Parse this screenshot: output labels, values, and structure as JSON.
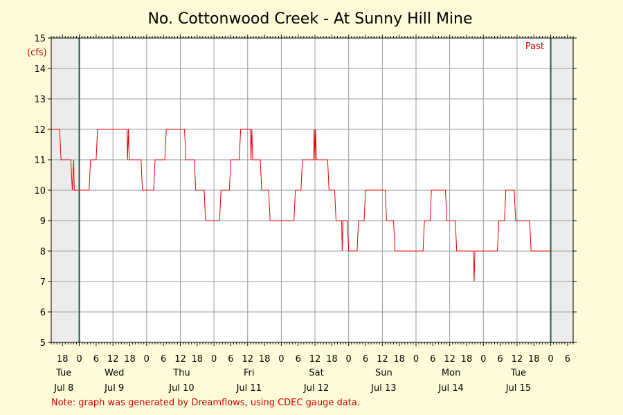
{
  "chart_data": {
    "type": "line",
    "title": "No. Cottonwood Creek - At Sunny Hill Mine",
    "ylabel": "(cfs)",
    "xlabel": "",
    "ylim": [
      5,
      15
    ],
    "yticks": [
      5,
      6,
      7,
      8,
      9,
      10,
      11,
      12,
      13,
      14,
      15
    ],
    "x_hour_ticks": [
      {
        "h": -6,
        "label": "18"
      },
      {
        "h": 0,
        "label": "0"
      },
      {
        "h": 6,
        "label": "6"
      },
      {
        "h": 12,
        "label": "12"
      },
      {
        "h": 18,
        "label": "18"
      },
      {
        "h": 24,
        "label": "0"
      },
      {
        "h": 30,
        "label": "6"
      },
      {
        "h": 36,
        "label": "12"
      },
      {
        "h": 42,
        "label": "18"
      },
      {
        "h": 48,
        "label": "0"
      },
      {
        "h": 54,
        "label": "6"
      },
      {
        "h": 60,
        "label": "12"
      },
      {
        "h": 66,
        "label": "18"
      },
      {
        "h": 72,
        "label": "0"
      },
      {
        "h": 78,
        "label": "6"
      },
      {
        "h": 84,
        "label": "12"
      },
      {
        "h": 90,
        "label": "18"
      },
      {
        "h": 96,
        "label": "0"
      },
      {
        "h": 102,
        "label": "6"
      },
      {
        "h": 108,
        "label": "12"
      },
      {
        "h": 114,
        "label": "18"
      },
      {
        "h": 120,
        "label": "0"
      },
      {
        "h": 126,
        "label": "6"
      },
      {
        "h": 132,
        "label": "12"
      },
      {
        "h": 138,
        "label": "18"
      },
      {
        "h": 144,
        "label": "0"
      },
      {
        "h": 150,
        "label": "6"
      },
      {
        "h": 156,
        "label": "12"
      },
      {
        "h": 162,
        "label": "18"
      },
      {
        "h": 168,
        "label": "0"
      },
      {
        "h": 174,
        "label": "6"
      }
    ],
    "day_labels": [
      {
        "day": "Tue",
        "date": "Jul 8",
        "h": -6
      },
      {
        "day": "Wed",
        "date": "Jul 9",
        "h": 12
      },
      {
        "day": "Thu",
        "date": "Jul 10",
        "h": 36
      },
      {
        "day": "Fri",
        "date": "Jul 11",
        "h": 60
      },
      {
        "day": "Sat",
        "date": "Jul 12",
        "h": 84
      },
      {
        "day": "Sun",
        "date": "Jul 13",
        "h": 108
      },
      {
        "day": "Mon",
        "date": "Jul 14",
        "h": 132
      },
      {
        "day": "Tue",
        "date": "Jul 15",
        "h": 156
      }
    ],
    "x_range_hours": [
      -10,
      176
    ],
    "shaded_before_hour": 0,
    "shaded_after_hour": 168,
    "past_label": "Past",
    "series": [
      {
        "color": "#e00000",
        "points": [
          [
            -10,
            12
          ],
          [
            -7,
            12
          ],
          [
            -6.5,
            11
          ],
          [
            -3,
            11
          ],
          [
            -2.5,
            10
          ],
          [
            -2,
            11
          ],
          [
            -1.8,
            10
          ],
          [
            3.5,
            10
          ],
          [
            4,
            11
          ],
          [
            6,
            11
          ],
          [
            6.5,
            12
          ],
          [
            17,
            12
          ],
          [
            17.2,
            11
          ],
          [
            17.5,
            12
          ],
          [
            17.8,
            11
          ],
          [
            22,
            11
          ],
          [
            22.5,
            10
          ],
          [
            26.5,
            10
          ],
          [
            27,
            11
          ],
          [
            30.5,
            11
          ],
          [
            31,
            12
          ],
          [
            37.5,
            12
          ],
          [
            38,
            11
          ],
          [
            41,
            11
          ],
          [
            41.5,
            10
          ],
          [
            44.5,
            10
          ],
          [
            45,
            9
          ],
          [
            50,
            9
          ],
          [
            50.5,
            10
          ],
          [
            53.5,
            10
          ],
          [
            54,
            11
          ],
          [
            57,
            11
          ],
          [
            57.5,
            12
          ],
          [
            61,
            12
          ],
          [
            61.2,
            11
          ],
          [
            61.5,
            12
          ],
          [
            61.8,
            11
          ],
          [
            64.5,
            11
          ],
          [
            65,
            10
          ],
          [
            67.5,
            10
          ],
          [
            68,
            9
          ],
          [
            76.5,
            9
          ],
          [
            77,
            10
          ],
          [
            79,
            10
          ],
          [
            79.5,
            11
          ],
          [
            83.5,
            11
          ],
          [
            83.7,
            12
          ],
          [
            84,
            11
          ],
          [
            84.2,
            12
          ],
          [
            84.5,
            11
          ],
          [
            88.5,
            11
          ],
          [
            89,
            10
          ],
          [
            91,
            10
          ],
          [
            91.5,
            9
          ],
          [
            93.5,
            9
          ],
          [
            93.7,
            8
          ],
          [
            94,
            9
          ],
          [
            95.5,
            9
          ],
          [
            96,
            8
          ],
          [
            99,
            8
          ],
          [
            99.5,
            9
          ],
          [
            101.5,
            9
          ],
          [
            102,
            10
          ],
          [
            109,
            10
          ],
          [
            109.5,
            9
          ],
          [
            112,
            9
          ],
          [
            112.5,
            8
          ],
          [
            122.5,
            8
          ],
          [
            123,
            9
          ],
          [
            125,
            9
          ],
          [
            125.5,
            10
          ],
          [
            130.5,
            10
          ],
          [
            131,
            9
          ],
          [
            134,
            9
          ],
          [
            134.5,
            8
          ],
          [
            140.5,
            8
          ],
          [
            140.7,
            7
          ],
          [
            141,
            8
          ],
          [
            149,
            8
          ],
          [
            149.5,
            9
          ],
          [
            151.5,
            9
          ],
          [
            152,
            10
          ],
          [
            155,
            10
          ],
          [
            155.5,
            9
          ],
          [
            160.5,
            9
          ],
          [
            161,
            8
          ],
          [
            168,
            8
          ]
        ]
      }
    ]
  },
  "footnote": "Note: graph was generated by Dreamflows, using CDEC gauge data."
}
